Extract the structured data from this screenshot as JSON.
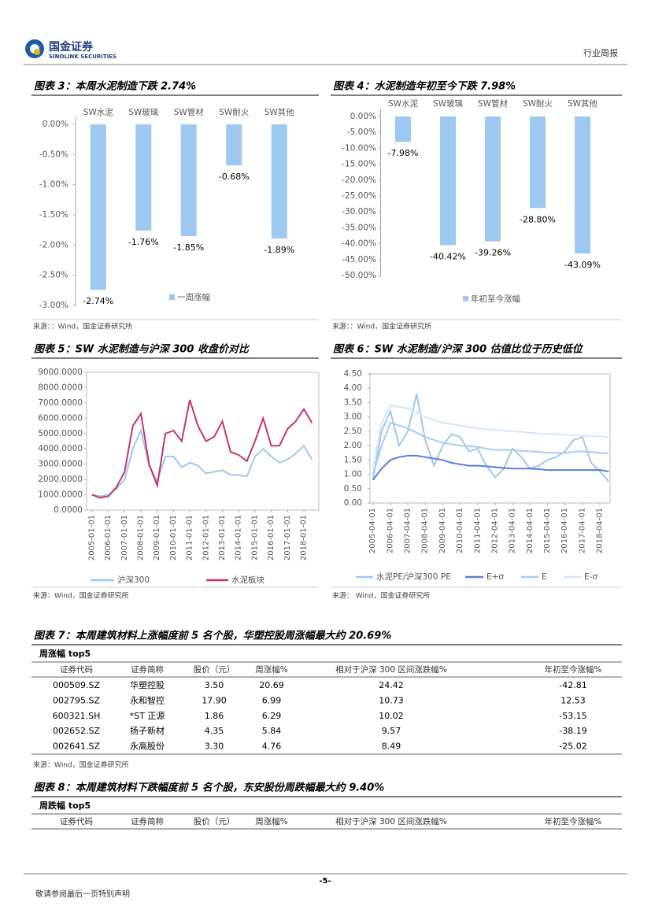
{
  "header": {
    "company": "国金证券",
    "company_en": "SINOLINK SECURITIES",
    "report_type": "行业周报"
  },
  "figures": [
    {
      "type": "bar",
      "title": "图表 3：本周水泥制造下跌 2.74%",
      "categories": [
        "SW水泥",
        "SW玻璃",
        "SW管材",
        "SW耐火",
        "SW其他"
      ],
      "series": [
        {
          "name": "一周涨幅",
          "color": "#9dc8f0",
          "values": [
            -2.74,
            -1.76,
            -1.85,
            -0.68,
            -1.89
          ],
          "value_labels": [
            "-2.74%",
            "-1.76%",
            "-1.85%",
            "-0.68%",
            "-1.89%"
          ]
        }
      ],
      "ylim": [
        -3,
        0
      ],
      "yticks": [
        {
          "value": 0,
          "label": "0.00%"
        },
        {
          "value": -0.5,
          "label": "-0.50%"
        },
        {
          "value": -1,
          "label": "-1.00%"
        },
        {
          "value": -1.5,
          "label": "-1.50%"
        },
        {
          "value": -2,
          "label": "-2.00%"
        },
        {
          "value": -2.5,
          "label": "-2.50%"
        },
        {
          "value": -3,
          "label": "-3.00%"
        }
      ],
      "source": "来源：：Wind，国金证券研究所"
    },
    {
      "type": "bar",
      "title": "图表 4：水泥制造年初至今下跌 7.98%",
      "categories": [
        "SW水泥",
        "SW玻璃",
        "SW管材",
        "SW耐火",
        "SW其他"
      ],
      "series": [
        {
          "name": "年初至今涨幅",
          "color": "#9dc8f0",
          "values": [
            -7.98,
            -40.42,
            -39.26,
            -28.8,
            -43.09
          ],
          "value_labels": [
            "-7.98%",
            "-40.42%",
            "-39.26%",
            "-28.80%",
            "-43.09%"
          ]
        }
      ],
      "ylim": [
        -50,
        0
      ],
      "yticks": [
        {
          "value": 0,
          "label": "0.00%"
        },
        {
          "value": -5,
          "label": "-5.00%"
        },
        {
          "value": -10,
          "label": "-10.00%"
        },
        {
          "value": -15,
          "label": "-15.00%"
        },
        {
          "value": -20,
          "label": "-20.00%"
        },
        {
          "value": -25,
          "label": "-25.00%"
        },
        {
          "value": -30,
          "label": "-30.00%"
        },
        {
          "value": -35,
          "label": "-35.00%"
        },
        {
          "value": -40,
          "label": "-40.00%"
        },
        {
          "value": -45,
          "label": "-45.00%"
        },
        {
          "value": -50,
          "label": "-50.00%"
        }
      ],
      "source": "来源：：Wind，国金证券研究所"
    },
    {
      "type": "line",
      "title": "图表 5：SW 水泥制造与沪深 300 收盘价对比",
      "x": [
        "2005-01-01",
        "2005-07-01",
        "2006-01-01",
        "2006-07-01",
        "2007-01-01",
        "2007-07-01",
        "2008-01-01",
        "2008-07-01",
        "2009-01-01",
        "2009-07-01",
        "2010-01-01",
        "2010-07-01",
        "2011-01-01",
        "2011-07-01",
        "2012-01-01",
        "2012-07-01",
        "2013-01-01",
        "2013-07-01",
        "2014-01-01",
        "2014-07-01",
        "2015-01-01",
        "2015-07-01",
        "2016-01-01",
        "2016-07-01",
        "2017-01-01",
        "2017-07-01",
        "2018-01-01",
        "2018-07-01"
      ],
      "series": [
        {
          "name": "沪深300",
          "color": "#9dc8f0",
          "values": [
            1000,
            900,
            1000,
            1400,
            2000,
            4000,
            5200,
            2900,
            1900,
            3500,
            3500,
            2800,
            3100,
            2900,
            2400,
            2500,
            2600,
            2300,
            2300,
            2200,
            3500,
            4000,
            3500,
            3100,
            3300,
            3700,
            4200,
            3300
          ]
        },
        {
          "name": "水泥板块",
          "color": "#c8336e",
          "values": [
            1000,
            800,
            900,
            1500,
            2500,
            5500,
            6300,
            3000,
            1600,
            5000,
            5200,
            4500,
            7200,
            5500,
            4500,
            4800,
            5800,
            3800,
            3600,
            3200,
            4500,
            6000,
            4200,
            4200,
            5300,
            5800,
            6600,
            5700
          ]
        }
      ],
      "xlim": [
        "2004-09-01",
        "2018-12-01"
      ],
      "xticks": [
        "2005-01-01",
        "2006-01-01",
        "2007-01-01",
        "2008-01-01",
        "2009-01-01",
        "2010-01-01",
        "2011-01-01",
        "2012-01-01",
        "2013-01-01",
        "2014-01-01",
        "2015-01-01",
        "2016-01-01",
        "2017-01-01",
        "2018-01-01"
      ],
      "ylim": [
        0,
        9000
      ],
      "yticks": [
        {
          "value": 9000,
          "label": "9000.0000"
        },
        {
          "value": 8000,
          "label": "8000.0000"
        },
        {
          "value": 7000,
          "label": "7000.0000"
        },
        {
          "value": 6000,
          "label": "6000.0000"
        },
        {
          "value": 5000,
          "label": "5000.0000"
        },
        {
          "value": 4000,
          "label": "4000.0000"
        },
        {
          "value": 3000,
          "label": "3000.0000"
        },
        {
          "value": 2000,
          "label": "2000.0000"
        },
        {
          "value": 1000,
          "label": "1000.0000"
        },
        {
          "value": 0,
          "label": "0.0000"
        }
      ],
      "source": "来源：Wind，国金证券研究所"
    },
    {
      "type": "line",
      "title": "图表 6：SW 水泥制造/沪深 300 估值比位于历史低位",
      "x": [
        "2005-04-01",
        "2005-10-01",
        "2006-04-01",
        "2006-10-01",
        "2007-04-01",
        "2007-10-01",
        "2008-04-01",
        "2008-10-01",
        "2009-04-01",
        "2009-10-01",
        "2010-04-01",
        "2010-10-01",
        "2011-04-01",
        "2011-10-01",
        "2012-04-01",
        "2012-10-01",
        "2013-04-01",
        "2013-10-01",
        "2014-04-01",
        "2014-10-01",
        "2015-04-01",
        "2015-10-01",
        "2016-04-01",
        "2016-10-01",
        "2017-04-01",
        "2017-10-01",
        "2018-04-01",
        "2018-10-01"
      ],
      "series": [
        {
          "name": "水泥PE/沪深300 PE",
          "color": "#9dc8f0",
          "values": [
            0.8,
            2.5,
            3.2,
            2.0,
            2.5,
            3.8,
            2.2,
            1.3,
            2.0,
            2.4,
            2.3,
            1.8,
            1.9,
            1.3,
            0.9,
            1.2,
            1.9,
            1.6,
            1.2,
            1.3,
            1.5,
            1.6,
            1.8,
            2.2,
            2.3,
            1.4,
            1.1,
            0.75
          ]
        },
        {
          "name": "E+σ",
          "color": "#5b7be0",
          "values": [
            0.8,
            1.2,
            1.5,
            1.6,
            1.65,
            1.65,
            1.6,
            1.55,
            1.5,
            1.4,
            1.35,
            1.3,
            1.3,
            1.28,
            1.25,
            1.22,
            1.2,
            1.2,
            1.2,
            1.18,
            1.15,
            1.15,
            1.15,
            1.15,
            1.15,
            1.15,
            1.15,
            1.1
          ]
        },
        {
          "name": "E",
          "color": "#a9cbee",
          "values": [
            1.0,
            2.0,
            2.8,
            2.7,
            2.6,
            2.45,
            2.3,
            2.2,
            2.1,
            2.05,
            2.0,
            1.98,
            1.95,
            1.9,
            1.85,
            1.85,
            1.85,
            1.82,
            1.8,
            1.78,
            1.75,
            1.75,
            1.75,
            1.78,
            1.8,
            1.78,
            1.75,
            1.72
          ]
        },
        {
          "name": "E-σ",
          "color": "#d3e5f7",
          "values": [
            1.2,
            2.8,
            3.4,
            3.35,
            3.3,
            3.15,
            3.0,
            2.9,
            2.8,
            2.75,
            2.7,
            2.65,
            2.6,
            2.58,
            2.55,
            2.52,
            2.5,
            2.48,
            2.45,
            2.42,
            2.4,
            2.4,
            2.38,
            2.36,
            2.35,
            2.34,
            2.32,
            2.3
          ]
        }
      ],
      "xlim": [
        "2005-02-01",
        "2018-11-01"
      ],
      "xticks": [
        "2005-04-01",
        "2006-04-01",
        "2007-04-01",
        "2008-04-01",
        "2009-04-01",
        "2010-04-01",
        "2011-04-01",
        "2012-04-01",
        "2013-04-01",
        "2014-04-01",
        "2015-04-01",
        "2016-04-01",
        "2017-04-01",
        "2018-04-01"
      ],
      "ylim": [
        0,
        4.5
      ],
      "yticks": [
        {
          "value": 4.5,
          "label": "4.50"
        },
        {
          "value": 4,
          "label": "4.00"
        },
        {
          "value": 3.5,
          "label": "3.50"
        },
        {
          "value": 3,
          "label": "3.00"
        },
        {
          "value": 2.5,
          "label": "2.50"
        },
        {
          "value": 2,
          "label": "2.00"
        },
        {
          "value": 1.5,
          "label": "1.50"
        },
        {
          "value": 1,
          "label": "1.00"
        },
        {
          "value": 0.5,
          "label": "0.50"
        },
        {
          "value": 0,
          "label": "0.00"
        }
      ],
      "source": "来源： Wind，国金证券研究所"
    }
  ],
  "tables": [
    {
      "title": "图表 7：本周建筑材料上涨幅度前 5 名个股，华塑控股周涨幅最大约 20.69%",
      "subtitle": "周涨幅 top5",
      "columns": [
        "证券代码",
        "证券简称",
        "股价（元）",
        "周涨幅%",
        "相对于沪深 300 区间涨跌幅%",
        "年初至今涨幅%"
      ],
      "rows": [
        [
          "000509.SZ",
          "华塑控股",
          "3.50",
          "20.69",
          "24.42",
          "-42.81"
        ],
        [
          "002795.SZ",
          "永和智控",
          "17.90",
          "6.99",
          "10.73",
          "12.53"
        ],
        [
          "600321.SH",
          "*ST 正源",
          "1.86",
          "6.29",
          "10.02",
          "-53.15"
        ],
        [
          "002652.SZ",
          "扬子新材",
          "4.35",
          "5.84",
          "9.57",
          "-38.19"
        ],
        [
          "002641.SZ",
          "永高股份",
          "3.30",
          "4.76",
          "8.49",
          "-25.02"
        ]
      ],
      "source": "来源：Wind，国金证券研究所"
    },
    {
      "title": "图表 8：本周建筑材料下跌幅度前 5 名个股，东安股份周跌幅最大约 9.40%",
      "subtitle": "周跌幅 top5",
      "columns": [
        "证券代码",
        "证券简称",
        "股价（元）",
        "周涨幅%",
        "相对于沪深 300 区间涨跌幅%",
        "年初至今涨幅%"
      ],
      "rows": []
    }
  ],
  "footer": {
    "page": "-5-",
    "disclaimer": "敬请参阅最后一页特别声明"
  }
}
